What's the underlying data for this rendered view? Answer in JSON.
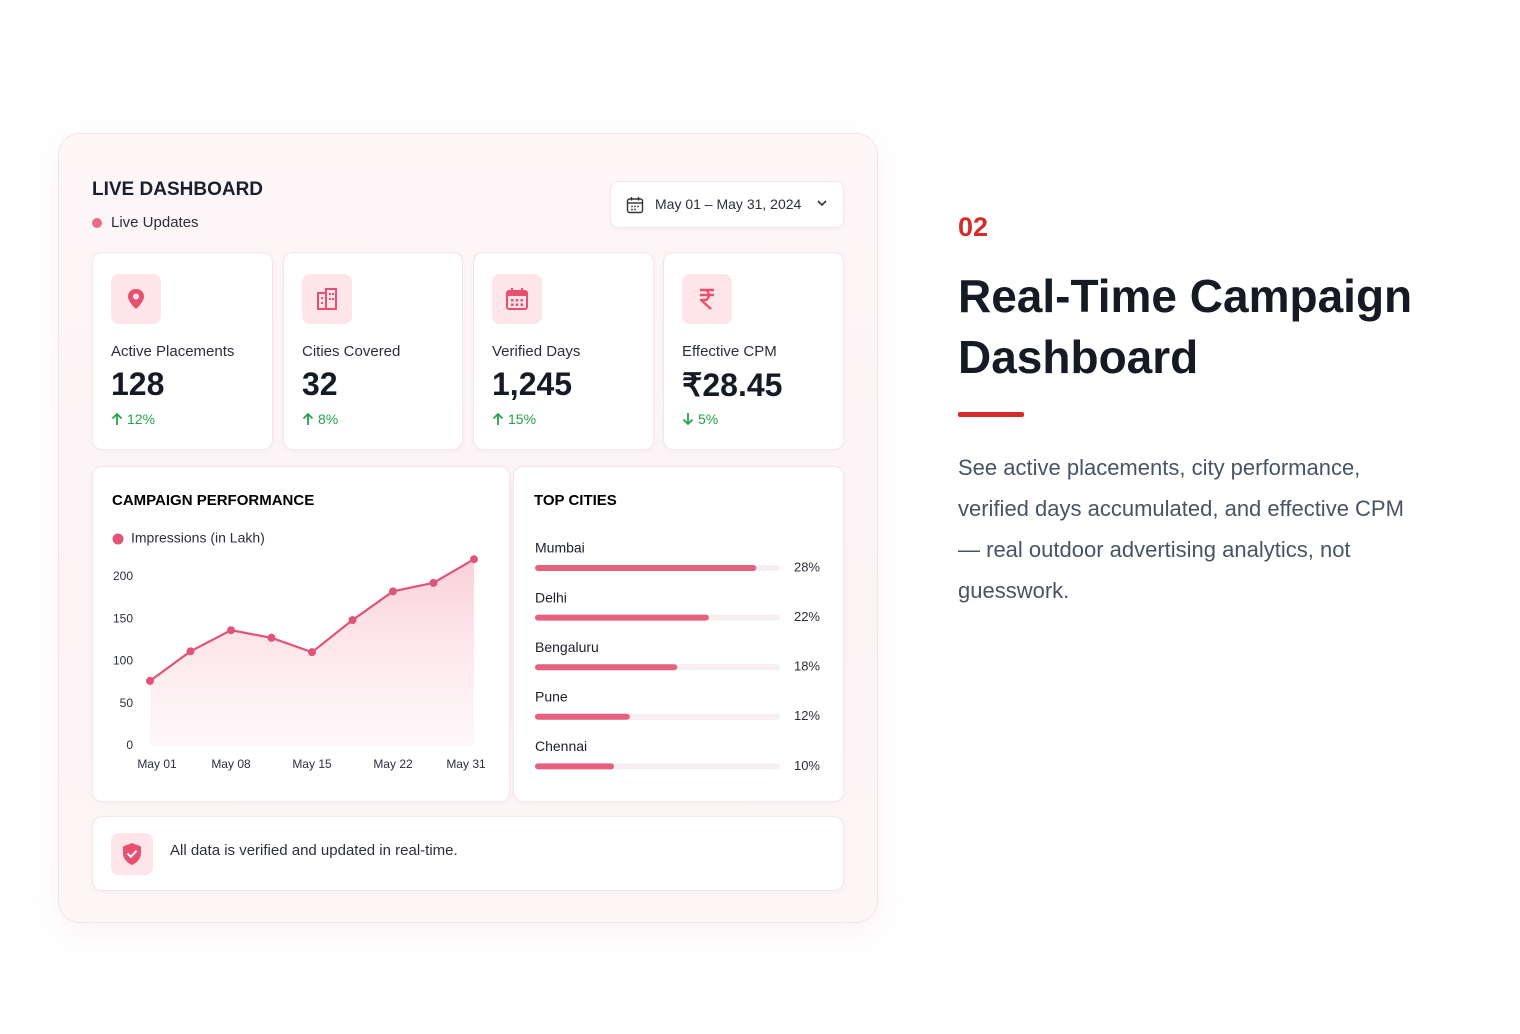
{
  "dashboard": {
    "title": "LIVE DASHBOARD",
    "status": "Live Updates",
    "date_range": "May 01 – May 31, 2024",
    "stats": [
      {
        "label": "Active Placements",
        "value": "128",
        "change": "12%",
        "trend": "up"
      },
      {
        "label": "Cities Covered",
        "value": "32",
        "change": "8%",
        "trend": "up"
      },
      {
        "label": "Verified Days",
        "value": "1,245",
        "change": "15%",
        "trend": "up"
      },
      {
        "label": "Effective CPM",
        "value": "₹28.45",
        "change": "5%",
        "trend": "down"
      }
    ],
    "footer": "All data is verified and updated in real-time."
  },
  "section": {
    "number": "02",
    "title": "Real-Time Campaign Dashboard",
    "description": "See active placements, city performance, verified days accumulated, and effective CPM — real outdoor advertising analytics, not guesswork."
  },
  "chart_data": [
    {
      "type": "line",
      "title": "CAMPAIGN PERFORMANCE",
      "categories": [
        "May 01",
        null,
        "May 08",
        null,
        "May 15",
        null,
        "May 22",
        null,
        "May 31"
      ],
      "series": [
        {
          "name": "Impressions (in Lakh)",
          "color": "#e0547a",
          "values": [
            77,
            112,
            137,
            128,
            111,
            149,
            183,
            193,
            221
          ]
        }
      ],
      "ylim": [
        0,
        230
      ],
      "yticks": [
        0,
        50,
        100,
        150,
        200
      ]
    },
    {
      "type": "bar",
      "title": "TOP CITIES",
      "orientation": "horizontal",
      "categories": [
        "Mumbai",
        "Delhi",
        "Bengaluru",
        "Pune",
        "Chennai"
      ],
      "values": [
        28,
        22,
        18,
        12,
        10
      ],
      "value_labels": [
        "28%",
        "22%",
        "18%",
        "12%",
        "10%"
      ],
      "color": "#e8607f",
      "xlim": [
        0,
        31
      ]
    }
  ]
}
